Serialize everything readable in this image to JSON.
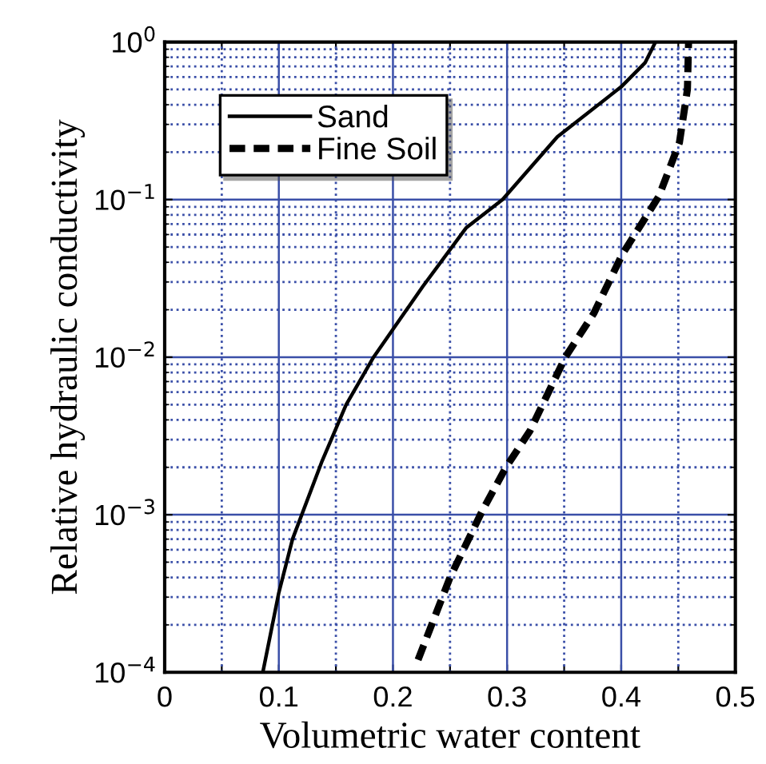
{
  "chart_data": {
    "type": "line",
    "xlabel": "Volumetric water content",
    "ylabel": "Relative hydraulic conductivity",
    "log": "y",
    "grid": true,
    "legend": "top left",
    "xlim": [
      0,
      0.5
    ],
    "ylim": [
      0.0001,
      1
    ],
    "xticks": [
      0,
      {
        "value": 0.05,
        "label": null
      },
      0.1,
      {
        "value": 0.15,
        "label": null
      },
      0.2,
      {
        "value": 0.25,
        "label": null
      },
      0.3,
      {
        "value": 0.35,
        "label": null
      },
      0.4,
      {
        "value": 0.45,
        "label": null
      },
      0.5
    ],
    "yticks": [
      {
        "value": 0.0001,
        "label": "10$^{−4}$"
      },
      {
        "value": 0.001,
        "label": "10$^{−3}$"
      },
      {
        "value": 0.01,
        "label": "10$^{−2}$"
      },
      {
        "value": 0.1,
        "label": "10$^{−1}$"
      },
      {
        "value": 1,
        "label": "10$^{0}$"
      }
    ],
    "series": [
      {
        "name": "Sand",
        "color": "#000000",
        "line_style": "solid",
        "x": [
          0.086,
          0.1,
          0.112,
          0.138,
          0.159,
          0.183,
          0.226,
          0.264,
          0.296,
          0.344,
          0.4,
          0.421,
          0.43
        ],
        "values": [
          0.0001,
          0.00032,
          0.0007,
          0.0022,
          0.005,
          0.01,
          0.028,
          0.066,
          0.1,
          0.25,
          0.52,
          0.74,
          1
        ]
      },
      {
        "name": "Fine Soil",
        "color": "#000000",
        "line_style": "dashed",
        "x": [
          0.222,
          0.25,
          0.278,
          0.299,
          0.32,
          0.351,
          0.376,
          0.401,
          0.433,
          0.451,
          0.458,
          0.459
        ],
        "values": [
          0.00012,
          0.0004,
          0.00105,
          0.002,
          0.0034,
          0.01,
          0.019,
          0.045,
          0.105,
          0.23,
          0.5,
          1
        ]
      }
    ]
  }
}
